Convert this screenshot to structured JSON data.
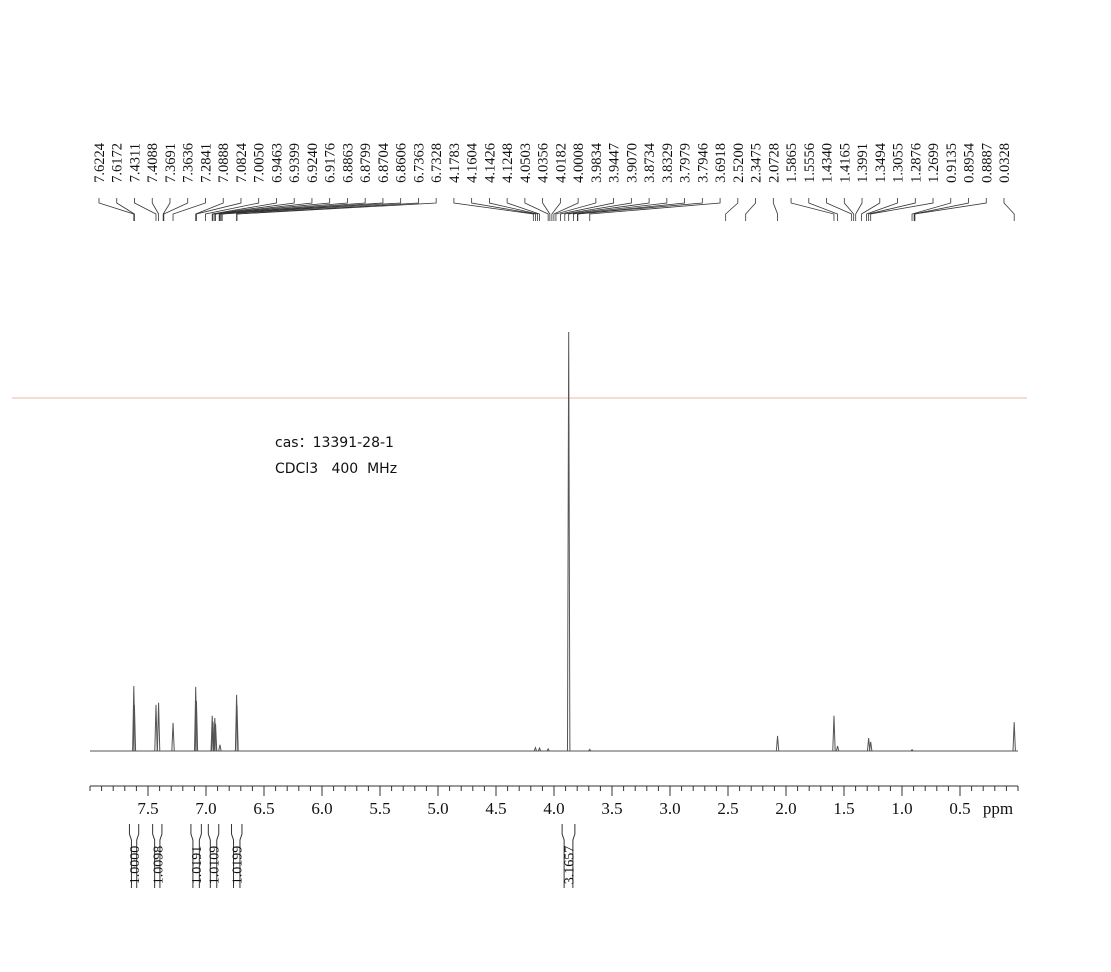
{
  "chart_data": {
    "type": "spectrum",
    "annotations": [
      "cas：13391-28-1",
      "CDCl3   400  MHz"
    ],
    "xlabel": "ppm",
    "xlim": [
      8.0,
      0.0
    ],
    "ylim": [
      0,
      100
    ],
    "xticks": [
      7.5,
      {
        "value": 7.0,
        "label": "7.0"
      },
      6.5,
      {
        "value": 6.0,
        "label": "6.0"
      },
      5.5,
      {
        "value": 5.0,
        "label": "5.0"
      },
      4.5,
      {
        "value": 4.0,
        "label": "4.0"
      },
      3.5,
      {
        "value": 3.0,
        "label": "3.0"
      },
      2.5,
      {
        "value": 2.0,
        "label": "2.0"
      },
      1.5,
      {
        "value": 1.0,
        "label": "1.0"
      },
      0.5
    ],
    "peak_labels": [
      {
        "value": 7.6224,
        "label": "7.6224"
      },
      {
        "value": 7.6172,
        "label": "7.6172"
      },
      {
        "value": 7.4311,
        "label": "7.4311"
      },
      {
        "value": 7.4088,
        "label": "7.4088"
      },
      {
        "value": 7.3691,
        "label": "7.3691"
      },
      {
        "value": 7.3636,
        "label": "7.3636"
      },
      {
        "value": 7.2841,
        "label": "7.2841"
      },
      {
        "value": 7.0888,
        "label": "7.0888"
      },
      {
        "value": 7.0824,
        "label": "7.0824"
      },
      {
        "value": 7.005,
        "label": "7.0050"
      },
      {
        "value": 6.9463,
        "label": "6.9463"
      },
      {
        "value": 6.9399,
        "label": "6.9399"
      },
      {
        "value": 6.924,
        "label": "6.9240"
      },
      {
        "value": 6.9176,
        "label": "6.9176"
      },
      {
        "value": 6.8863,
        "label": "6.8863"
      },
      {
        "value": 6.8799,
        "label": "6.8799"
      },
      {
        "value": 6.8704,
        "label": "6.8704"
      },
      {
        "value": 6.8606,
        "label": "6.8606"
      },
      {
        "value": 6.7363,
        "label": "6.7363"
      },
      {
        "value": 6.7328,
        "label": "6.7328"
      },
      {
        "value": 4.1783,
        "label": "4.1783"
      },
      {
        "value": 4.1604,
        "label": "4.1604"
      },
      {
        "value": 4.1426,
        "label": "4.1426"
      },
      {
        "value": 4.1248,
        "label": "4.1248"
      },
      {
        "value": 4.0503,
        "label": "4.0503"
      },
      {
        "value": 4.0356,
        "label": "4.0356"
      },
      {
        "value": 4.0182,
        "label": "4.0182"
      },
      {
        "value": 4.0008,
        "label": "4.0008"
      },
      {
        "value": 3.9834,
        "label": "3.9834"
      },
      {
        "value": 3.9447,
        "label": "3.9447"
      },
      {
        "value": 3.907,
        "label": "3.9070"
      },
      {
        "value": 3.8734,
        "label": "3.8734"
      },
      {
        "value": 3.8329,
        "label": "3.8329"
      },
      {
        "value": 3.7979,
        "label": "3.7979"
      },
      {
        "value": 3.7946,
        "label": "3.7946"
      },
      {
        "value": 3.6918,
        "label": "3.6918"
      },
      {
        "value": 2.52,
        "label": "2.5200"
      },
      {
        "value": 2.3475,
        "label": "2.3475"
      },
      {
        "value": 2.0728,
        "label": "2.0728"
      },
      {
        "value": 1.5865,
        "label": "1.5865"
      },
      {
        "value": 1.5556,
        "label": "1.5556"
      },
      {
        "value": 1.434,
        "label": "1.4340"
      },
      {
        "value": 1.4165,
        "label": "1.4165"
      },
      {
        "value": 1.3991,
        "label": "1.3991"
      },
      {
        "value": 1.3494,
        "label": "1.3494"
      },
      {
        "value": 1.3055,
        "label": "1.3055"
      },
      {
        "value": 1.2876,
        "label": "1.2876"
      },
      {
        "value": 1.2699,
        "label": "1.2699"
      },
      {
        "value": 0.9135,
        "label": "0.9135"
      },
      {
        "value": 0.8954,
        "label": "0.8954"
      },
      {
        "value": 0.8887,
        "label": "0.8887"
      },
      {
        "value": 0.0328,
        "label": "0.0328"
      }
    ],
    "signals": {
      "x": [
        7.6224,
        7.6172,
        7.4311,
        7.4088,
        7.2841,
        7.0888,
        7.0824,
        6.9463,
        6.9399,
        6.924,
        6.9176,
        6.8799,
        6.7363,
        6.7328,
        4.1604,
        4.1248,
        4.0503,
        3.8734,
        3.6918,
        2.0728,
        1.5865,
        1.5556,
        1.2876,
        1.2699,
        0.9135,
        0.0328
      ],
      "values": [
        15.5,
        11,
        11,
        11.5,
        6.7,
        15.3,
        12,
        8.4,
        7,
        7.9,
        6.5,
        1.5,
        13.4,
        11,
        0.8,
        0.7,
        0.5,
        100,
        0.4,
        3.6,
        8.4,
        1.2,
        3.1,
        2.2,
        0.3,
        6.9
      ],
      "color": "#555555"
    },
    "integrals": [
      {
        "value": 1.0,
        "label": "1.0000",
        "range": [
          7.66,
          7.58
        ]
      },
      {
        "value": 1.0098,
        "label": "1.0098",
        "range": [
          7.46,
          7.38
        ]
      },
      {
        "value": 1.0191,
        "label": "1.0191",
        "range": [
          7.13,
          7.04
        ]
      },
      {
        "value": 1.0109,
        "label": "1.0109",
        "range": [
          6.98,
          6.89
        ]
      },
      {
        "value": 1.0199,
        "label": "1.0199",
        "range": [
          6.78,
          6.69
        ]
      },
      {
        "value": 3.1657,
        "label": "3.1657",
        "range": [
          3.93,
          3.82
        ]
      }
    ]
  }
}
